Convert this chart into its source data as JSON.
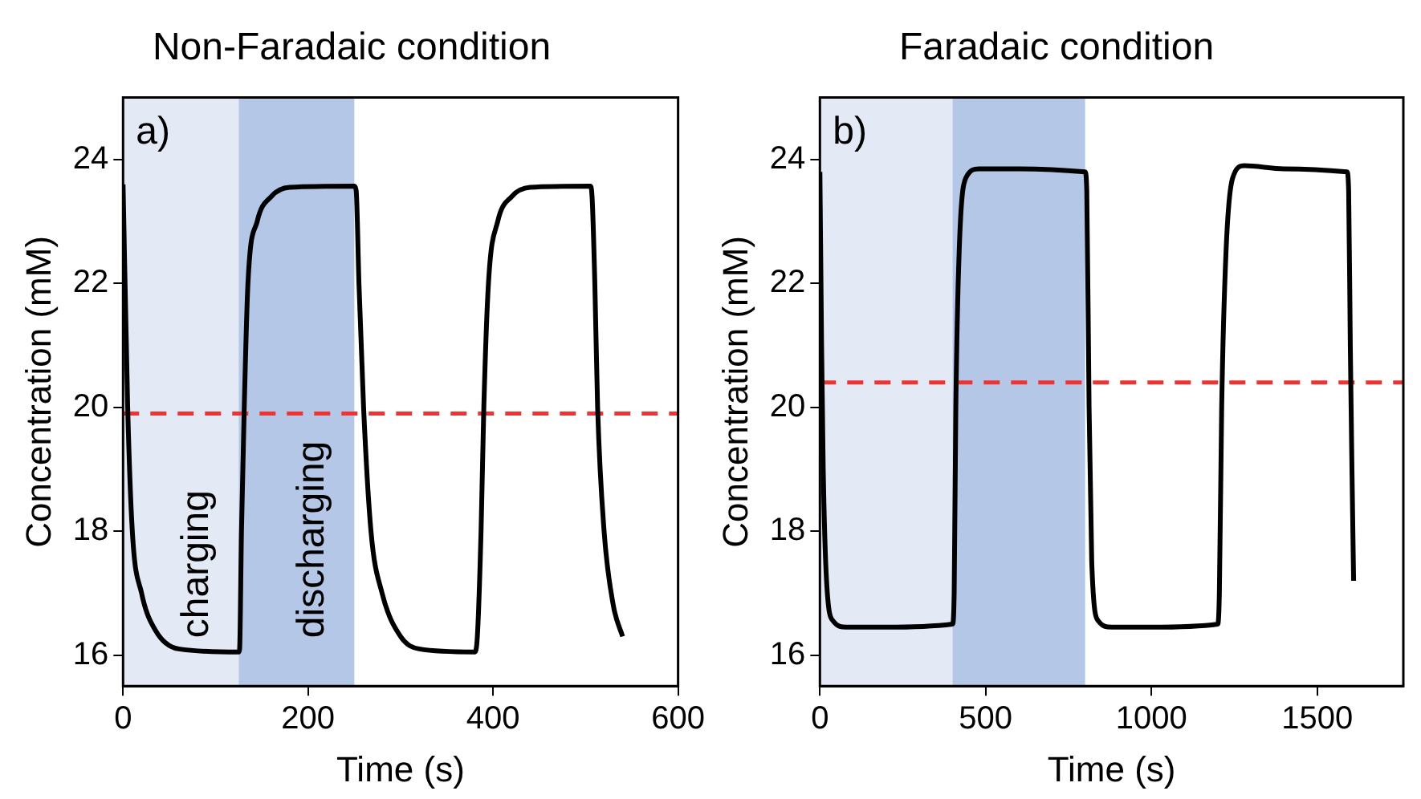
{
  "chart_data": [
    {
      "type": "line",
      "title": "Non-Faradaic condition",
      "xlabel": "Time (s)",
      "ylabel": "Concentration (mM)",
      "annotations": [
        "a)"
      ],
      "x": [
        0,
        5,
        10,
        20,
        35,
        60,
        125,
        126,
        128,
        131,
        135,
        145,
        160,
        180,
        250,
        252,
        255,
        260,
        268,
        280,
        300,
        320,
        380,
        383,
        387,
        390,
        395,
        405,
        420,
        440,
        505,
        507,
        510,
        513,
        520,
        530,
        540
      ],
      "series": [
        {
          "color": "#000000",
          "values": [
            23.6,
            20,
            18,
            17,
            16.4,
            16.1,
            16.05,
            16.1,
            18,
            20,
            22,
            23,
            23.4,
            23.55,
            23.57,
            23.5,
            22,
            20,
            18,
            17,
            16.3,
            16.1,
            16.05,
            16.3,
            18,
            20,
            22,
            23,
            23.4,
            23.55,
            23.57,
            23.4,
            22,
            20,
            18,
            16.8,
            16.3
          ]
        }
      ],
      "xlim": [
        0,
        600
      ],
      "xticks": [
        0,
        200,
        400,
        600
      ],
      "ylim": [
        15.5,
        25
      ],
      "yticks": [
        16,
        18,
        20,
        22,
        24
      ],
      "ref_lines": [
        {
          "axis": "y",
          "value": 19.9,
          "color": "#ee3333",
          "line_style": "dashed"
        }
      ],
      "bands": [
        {
          "axis": "x",
          "from": 0,
          "to": 125,
          "label": "charging",
          "color": "#e3e9f5"
        },
        {
          "axis": "x",
          "from": 125,
          "to": 250,
          "label": "discharging",
          "color": "#b4c7e7"
        }
      ],
      "marker": "none",
      "line_style": "solid",
      "legend": false,
      "grid": false
    },
    {
      "type": "line",
      "title": "Faradaic condition",
      "xlabel": "Time (s)",
      "ylabel": "Concentration (mM)",
      "annotations": [
        "b)"
      ],
      "x": [
        0,
        5,
        10,
        20,
        40,
        80,
        200,
        400,
        405,
        410,
        420,
        440,
        480,
        600,
        800,
        805,
        812,
        820,
        840,
        880,
        1000,
        1200,
        1205,
        1212,
        1225,
        1245,
        1280,
        1400,
        1590,
        1595,
        1600,
        1605,
        1610
      ],
      "series": [
        {
          "color": "#000000",
          "values": [
            23.8,
            21,
            19,
            17.2,
            16.55,
            16.45,
            16.45,
            16.5,
            17,
            20,
            22.5,
            23.7,
            23.85,
            23.85,
            23.8,
            23.5,
            20,
            17.5,
            16.55,
            16.45,
            16.45,
            16.5,
            17,
            20,
            22.5,
            23.7,
            23.9,
            23.85,
            23.8,
            23.5,
            21,
            19,
            17.2
          ]
        }
      ],
      "xlim": [
        0,
        1760
      ],
      "xticks": [
        0,
        500,
        1000,
        1500
      ],
      "ylim": [
        15.5,
        25
      ],
      "yticks": [
        16,
        18,
        20,
        22,
        24
      ],
      "ref_lines": [
        {
          "axis": "y",
          "value": 20.4,
          "color": "#ee3333",
          "line_style": "dashed"
        }
      ],
      "bands": [
        {
          "axis": "x",
          "from": 0,
          "to": 400,
          "color": "#e3e9f5"
        },
        {
          "axis": "x",
          "from": 400,
          "to": 800,
          "color": "#b4c7e7"
        }
      ],
      "marker": "none",
      "line_style": "solid",
      "legend": false,
      "grid": false
    }
  ]
}
